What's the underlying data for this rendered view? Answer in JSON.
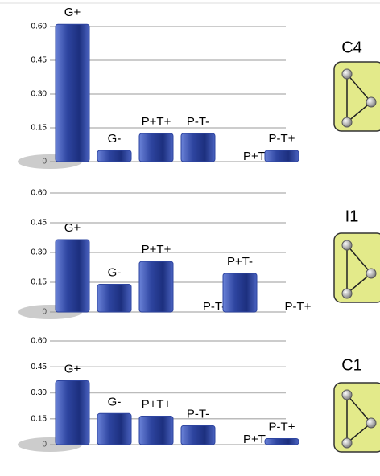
{
  "chart_data": [
    {
      "type": "bar",
      "title": "C4",
      "categories": [
        "G+",
        "G-",
        "P+T+",
        "P-T-",
        "P+T-",
        "P-T+"
      ],
      "values": [
        0.61,
        0.05,
        0.125,
        0.125,
        0,
        0.05
      ],
      "color": "#2e45a0",
      "ylim": [
        0,
        0.6
      ],
      "yticks": [
        0,
        {
          "value": 0.15,
          "label": "0.15"
        },
        {
          "value": 0.3,
          "label": "0.30"
        },
        {
          "value": 0.45,
          "label": "0.45"
        },
        {
          "value": 0.6,
          "label": "0.60"
        }
      ],
      "grid": true
    },
    {
      "type": "bar",
      "title": "I1",
      "categories": [
        "G+",
        "G-",
        "P+T+",
        "P-T-",
        "P+T-",
        "P-T+"
      ],
      "values": [
        0.365,
        0.14,
        0.255,
        0,
        0.195,
        0
      ],
      "color": "#2e45a0",
      "ylim": [
        0,
        0.6
      ],
      "yticks": [
        0,
        {
          "value": 0.15,
          "label": "0.15"
        },
        {
          "value": 0.3,
          "label": "0.30"
        },
        {
          "value": 0.45,
          "label": "0.45"
        },
        {
          "value": 0.6,
          "label": "0.60"
        }
      ],
      "grid": true
    },
    {
      "type": "bar",
      "title": "C1",
      "categories": [
        "G+",
        "G-",
        "P+T+",
        "P-T-",
        "P+T-",
        "P-T+"
      ],
      "values": [
        0.37,
        0.18,
        0.165,
        0.11,
        0,
        0.035
      ],
      "color": "#2e45a0",
      "ylim": [
        0,
        0.6
      ],
      "yticks": [
        0,
        {
          "value": 0.15,
          "label": "0.15"
        },
        {
          "value": 0.3,
          "label": "0.30"
        },
        {
          "value": 0.45,
          "label": "0.45"
        },
        {
          "value": 0.6,
          "label": "0.60"
        }
      ],
      "grid": true
    }
  ]
}
